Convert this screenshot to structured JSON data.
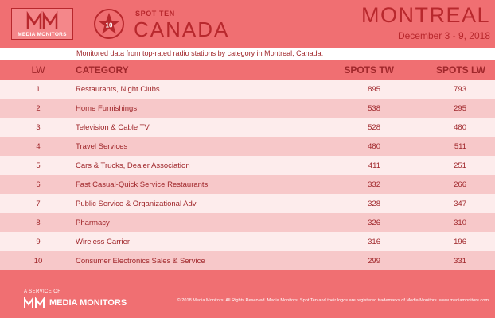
{
  "header": {
    "logo_text": "MEDIA MONITORS",
    "badge_number": "10",
    "spot_ten": "SPOT TEN",
    "country": "CANADA",
    "city": "MONTREAL",
    "dates": "December 3 - 9, 2018"
  },
  "subtitle": "Monitored data from top-rated radio stations by category in Montreal, Canada.",
  "columns": {
    "lw": "LW",
    "category": "CATEGORY",
    "spots_tw": "SPOTS TW",
    "spots_lw": "SPOTS LW"
  },
  "rows": [
    {
      "lw": "1",
      "category": "Restaurants, Night Clubs",
      "tw": "895",
      "lwv": "793"
    },
    {
      "lw": "2",
      "category": "Home Furnishings",
      "tw": "538",
      "lwv": "295"
    },
    {
      "lw": "3",
      "category": "Television & Cable TV",
      "tw": "528",
      "lwv": "480"
    },
    {
      "lw": "4",
      "category": "Travel Services",
      "tw": "480",
      "lwv": "511"
    },
    {
      "lw": "5",
      "category": "Cars & Trucks, Dealer Association",
      "tw": "411",
      "lwv": "251"
    },
    {
      "lw": "6",
      "category": "Fast Casual-Quick Service Restaurants",
      "tw": "332",
      "lwv": "266"
    },
    {
      "lw": "7",
      "category": "Public Service & Organizational Adv",
      "tw": "328",
      "lwv": "347"
    },
    {
      "lw": "8",
      "category": "Pharmacy",
      "tw": "326",
      "lwv": "310"
    },
    {
      "lw": "9",
      "category": "Wireless Carrier",
      "tw": "316",
      "lwv": "196"
    },
    {
      "lw": "10",
      "category": "Consumer Electronics Sales & Service",
      "tw": "299",
      "lwv": "331"
    }
  ],
  "footer": {
    "service": "A SERVICE OF",
    "brand": "MEDIA MONITORS",
    "copyright": "© 2018 Media Monitors. All Rights Reserved. Media Monitors, Spot Ten and their logos are registered trademarks of Media Monitors. www.mediamonitors.com"
  },
  "colors": {
    "background": "#f06f72",
    "accent": "#b8282d",
    "text": "#a0272b",
    "row_alt": "#f7c8c9",
    "row_plain": "#fdecec"
  }
}
